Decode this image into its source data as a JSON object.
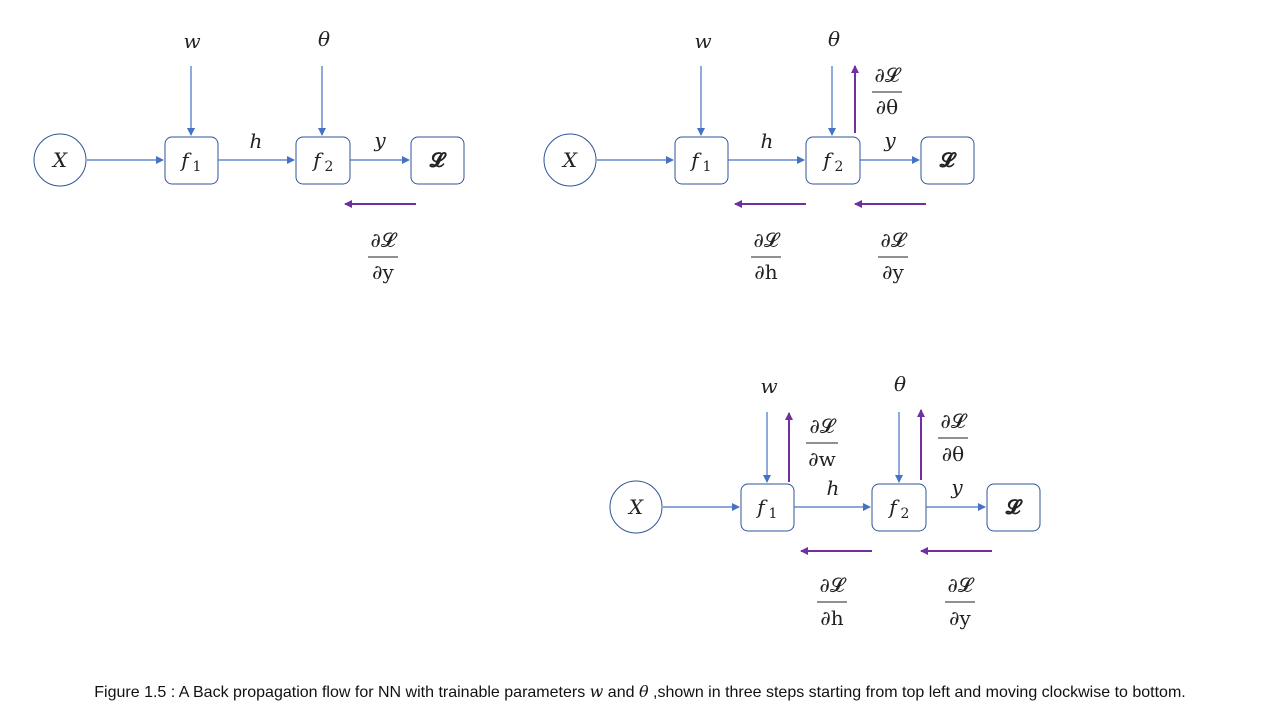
{
  "symbols": {
    "input": "X",
    "f1": "f",
    "f1_sub": "1",
    "f2": "f",
    "f2_sub": "2",
    "loss": "𝓛",
    "w": "w",
    "theta": "θ",
    "h": "h",
    "y": "y"
  },
  "gradients": {
    "dL_dy": {
      "num": "∂𝓛",
      "den": "∂y"
    },
    "dL_dh": {
      "num": "∂𝓛",
      "den": "∂h"
    },
    "dL_dtheta": {
      "num": "∂𝓛",
      "den": "∂θ"
    },
    "dL_dw": {
      "num": "∂𝓛",
      "den": "∂w"
    }
  },
  "colors": {
    "forward": "#4472c4",
    "backward": "#7030a0",
    "node_border": "#2f5597"
  },
  "caption": {
    "prefix": "Figure 1.5 : A Back propagation flow for NN with trainable parameters ",
    "w": "w",
    "and": " and ",
    "theta": "θ",
    "suffix": " ,shown in three steps starting from top left and moving clockwise to bottom."
  }
}
